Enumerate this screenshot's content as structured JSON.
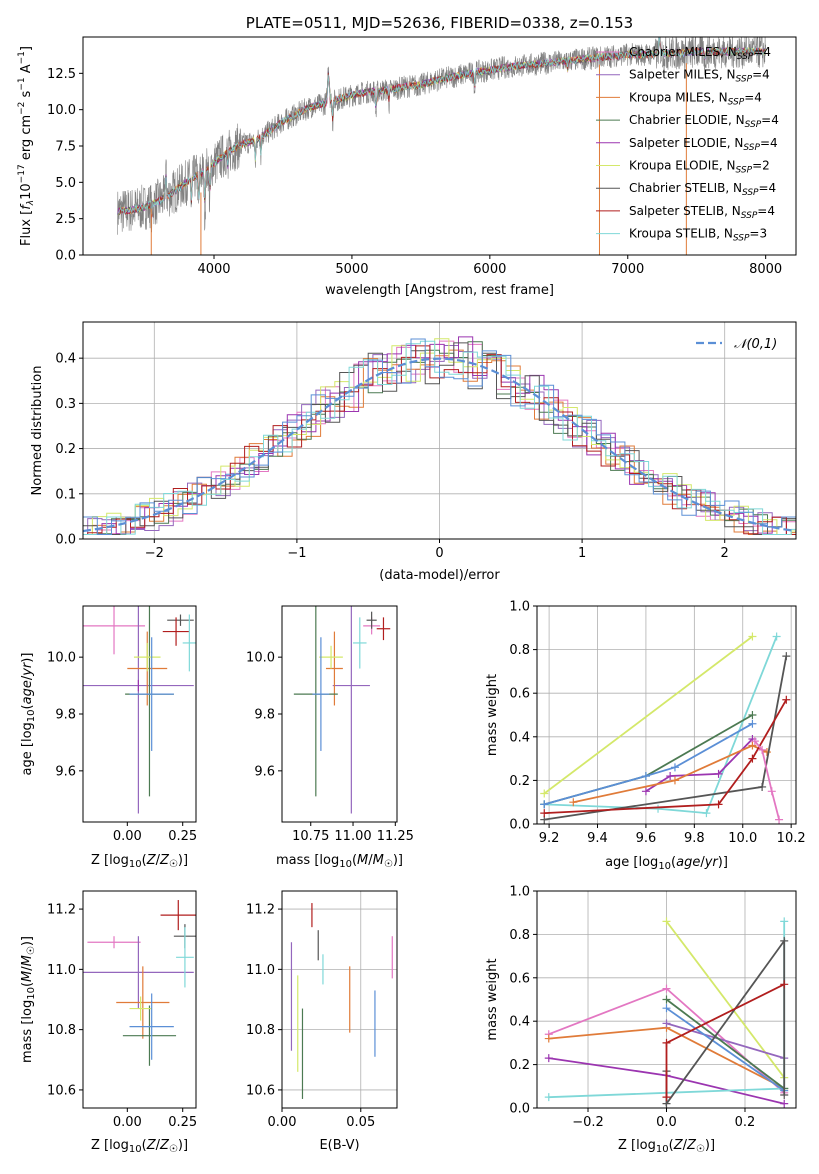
{
  "colors": {
    "Chabrier MILES": "#e377c2",
    "Salpeter MILES": "#9467bd",
    "Kroupa MILES": "#e07b39",
    "Chabrier ELODIE": "#4c7a52",
    "Salpeter ELODIE": "#9b35b0",
    "Kroupa ELODIE": "#d4e86a",
    "Chabrier STELIB": "#555555",
    "Salpeter STELIB": "#b11e1e",
    "Kroupa STELIB": "#7fd8d8",
    "data": "#808080",
    "normal": "#5b8fd6",
    "blue": "#5b8fd6",
    "grid": "#b0b0b0"
  },
  "chart_data": [
    {
      "id": "spectrum",
      "type": "line",
      "title": "PLATE=0511, MJD=52636, FIBERID=0338, z=0.153",
      "xlabel": "wavelength [Angstrom, rest frame]",
      "ylabel": "Flux [f_λ 10^-17 erg cm^-2 s^-1 A^-1]",
      "xlim": [
        3050,
        8220
      ],
      "ylim": [
        0,
        15
      ],
      "xticks": [
        "4000",
        "5000",
        "6000",
        "7000",
        "8000"
      ],
      "yticks": [
        "0.0",
        "2.5",
        "5.0",
        "7.5",
        "10.0",
        "12.5"
      ],
      "grid": false,
      "legend_position": "top-right",
      "legend": [
        {
          "base": "Chabrier MILES, N",
          "sub": "SSP",
          "tail": "=4",
          "color_key": "Chabrier MILES"
        },
        {
          "base": "Salpeter MILES, N",
          "sub": "SSP",
          "tail": "=4",
          "color_key": "Salpeter MILES"
        },
        {
          "base": "Kroupa MILES, N",
          "sub": "SSP",
          "tail": "=4",
          "color_key": "Kroupa MILES"
        },
        {
          "base": "Chabrier ELODIE, N",
          "sub": "SSP",
          "tail": "=4",
          "color_key": "Chabrier ELODIE"
        },
        {
          "base": "Salpeter ELODIE, N",
          "sub": "SSP",
          "tail": "=4",
          "color_key": "Salpeter ELODIE"
        },
        {
          "base": "Kroupa ELODIE, N",
          "sub": "SSP",
          "tail": "=2",
          "color_key": "Kroupa ELODIE"
        },
        {
          "base": "Chabrier STELIB, N",
          "sub": "SSP",
          "tail": "=4",
          "color_key": "Chabrier STELIB"
        },
        {
          "base": "Salpeter STELIB, N",
          "sub": "SSP",
          "tail": "=4",
          "color_key": "Salpeter STELIB"
        },
        {
          "base": "Kroupa STELIB, N",
          "sub": "SSP",
          "tail": "=3",
          "color_key": "Kroupa STELIB"
        }
      ],
      "continuum": [
        [
          3300,
          3.0
        ],
        [
          3400,
          3.1
        ],
        [
          3500,
          3.3
        ],
        [
          3600,
          3.7
        ],
        [
          3700,
          4.3
        ],
        [
          3800,
          5.0
        ],
        [
          3900,
          5.6
        ],
        [
          4000,
          6.3
        ],
        [
          4100,
          7.1
        ],
        [
          4200,
          7.6
        ],
        [
          4300,
          7.9
        ],
        [
          4400,
          8.5
        ],
        [
          4500,
          9.2
        ],
        [
          4600,
          9.7
        ],
        [
          4700,
          10.2
        ],
        [
          4800,
          10.4
        ],
        [
          4900,
          10.7
        ],
        [
          5000,
          11.0
        ],
        [
          5100,
          11.2
        ],
        [
          5200,
          11.3
        ],
        [
          5300,
          11.4
        ],
        [
          5400,
          11.6
        ],
        [
          5500,
          11.7
        ],
        [
          5600,
          12.0
        ],
        [
          5700,
          12.2
        ],
        [
          5800,
          12.4
        ],
        [
          5900,
          12.6
        ],
        [
          6000,
          12.7
        ],
        [
          6100,
          12.9
        ],
        [
          6200,
          13.0
        ],
        [
          6300,
          13.1
        ],
        [
          6400,
          13.2
        ],
        [
          6500,
          13.3
        ],
        [
          6600,
          13.4
        ],
        [
          6700,
          13.5
        ],
        [
          6800,
          13.6
        ],
        [
          6900,
          13.7
        ],
        [
          7000,
          13.8
        ],
        [
          7100,
          13.8
        ],
        [
          7200,
          13.8
        ],
        [
          7300,
          13.9
        ],
        [
          7400,
          13.9
        ],
        [
          7500,
          14.0
        ],
        [
          7600,
          14.0
        ],
        [
          7700,
          14.0
        ],
        [
          7800,
          14.0
        ],
        [
          7900,
          14.0
        ],
        [
          8000,
          14.0
        ]
      ],
      "features": [
        [
          3550,
          1.6,
          -1.2
        ],
        [
          3650,
          2.0,
          2.0
        ],
        [
          3835,
          1.8,
          -2.0
        ],
        [
          3889,
          2.2,
          -2.5
        ],
        [
          3934,
          2.6,
          -2.8
        ],
        [
          3969,
          2.4,
          -2.5
        ],
        [
          4102,
          1.6,
          -1.5
        ],
        [
          4300,
          2.2,
          -1.6
        ],
        [
          4340,
          1.6,
          -1.3
        ],
        [
          4861,
          1.8,
          -1.5
        ],
        [
          4830,
          3.5,
          2.6
        ],
        [
          5175,
          2.2,
          -1.6
        ],
        [
          5270,
          1.5,
          -1.0
        ],
        [
          5890,
          2.0,
          -1.3
        ],
        [
          6563,
          1.5,
          -0.8
        ],
        [
          7230,
          2.8,
          1.4
        ],
        [
          7560,
          1.8,
          -0.9
        ]
      ]
    },
    {
      "id": "residual-histogram",
      "type": "bar",
      "xlabel": "(data-model)/error",
      "ylabel": "Normed distribution",
      "xlim": [
        -2.5,
        2.5
      ],
      "ylim": [
        0,
        0.48
      ],
      "xticks": [
        "−2",
        "−1",
        "0",
        "1",
        "2"
      ],
      "yticks": [
        "0.0",
        "0.1",
        "0.2",
        "0.3",
        "0.4"
      ],
      "grid": true,
      "bin_width": 0.1,
      "legend_position": "top-right",
      "normal_label": "𝒩(0,1)",
      "normal_mean": 0,
      "normal_sigma": 1
    },
    {
      "id": "age-vs-z",
      "type": "scatter",
      "xlabel": "Z [log10(Z/Z☉)]",
      "ylabel": "age [log10(age/yr)]",
      "xlim": [
        -0.2,
        0.31
      ],
      "ylim": [
        9.42,
        10.18
      ],
      "xticks": [
        "0.00",
        "0.25"
      ],
      "ytick_values": [
        9.6,
        9.8,
        10.0
      ],
      "yticks": [
        "9.6",
        "9.8",
        "10.0"
      ],
      "grid": false,
      "points": [
        {
          "model": "Chabrier MILES",
          "x": -0.06,
          "y": 10.11,
          "xerr": 0.14,
          "yerr": 0.1
        },
        {
          "model": "Salpeter MILES",
          "x": 0.05,
          "y": 9.9,
          "xerr": 0.25,
          "yerr": 0.45
        },
        {
          "model": "Kroupa MILES",
          "x": 0.09,
          "y": 9.96,
          "xerr": 0.09,
          "yerr": 0.13
        },
        {
          "model": "Chabrier ELODIE",
          "x": 0.1,
          "y": 9.87,
          "xerr": 0.11,
          "yerr": 0.36
        },
        {
          "model": "Salpeter ELODIE",
          "x": 0.05,
          "y": 9.9,
          "xerr": 0.0,
          "yerr": 0.0
        },
        {
          "model": "Kroupa ELODIE",
          "x": 0.09,
          "y": 10.0,
          "xerr": 0.06,
          "yerr": 0.05
        },
        {
          "model": "Chabrier STELIB",
          "x": 0.24,
          "y": 10.13,
          "xerr": 0.06,
          "yerr": 0.0
        },
        {
          "model": "Salpeter STELIB",
          "x": 0.22,
          "y": 10.09,
          "xerr": 0.06,
          "yerr": 0.05
        },
        {
          "model": "Kroupa STELIB",
          "x": 0.28,
          "y": 10.05,
          "xerr": 0.03,
          "yerr": 0.1
        },
        {
          "model": "blue",
          "x": 0.11,
          "y": 9.87,
          "xerr": 0.1,
          "yerr": 0.2
        }
      ]
    },
    {
      "id": "age-vs-mass",
      "type": "scatter",
      "xlabel": "mass [log10(M/M☉)]",
      "ylabel": "",
      "xlim": [
        10.58,
        11.26
      ],
      "ylim": [
        9.42,
        10.18
      ],
      "xticks": [
        "10.75",
        "11.00",
        "11.25"
      ],
      "xtick_values": [
        10.75,
        11.0,
        11.25
      ],
      "ytick_values": [
        9.6,
        9.8,
        10.0
      ],
      "yticks": [
        "9.6",
        "9.8",
        "10.0"
      ],
      "grid": false,
      "points": [
        {
          "model": "Chabrier MILES",
          "x": 11.11,
          "y": 10.11,
          "xerr": 0.05,
          "yerr": 0.03
        },
        {
          "model": "Salpeter MILES",
          "x": 10.99,
          "y": 9.9,
          "xerr": 0.11,
          "yerr": 0.45
        },
        {
          "model": "Kroupa MILES",
          "x": 10.89,
          "y": 9.96,
          "xerr": 0.05,
          "yerr": 0.13
        },
        {
          "model": "Chabrier ELODIE",
          "x": 10.78,
          "y": 9.87,
          "xerr": 0.13,
          "yerr": 0.36
        },
        {
          "model": "Kroupa ELODIE",
          "x": 10.87,
          "y": 10.0,
          "xerr": 0.07,
          "yerr": 0.04
        },
        {
          "model": "Chabrier STELIB",
          "x": 11.11,
          "y": 10.13,
          "xerr": 0.03,
          "yerr": 0.03
        },
        {
          "model": "Salpeter STELIB",
          "x": 11.18,
          "y": 10.1,
          "xerr": 0.04,
          "yerr": 0.04
        },
        {
          "model": "Kroupa STELIB",
          "x": 11.04,
          "y": 10.05,
          "xerr": 0.04,
          "yerr": 0.09
        },
        {
          "model": "blue",
          "x": 10.81,
          "y": 9.87,
          "xerr": 0.05,
          "yerr": 0.2
        }
      ]
    },
    {
      "id": "mass-weight-vs-age",
      "type": "line",
      "xlabel": "age [log10(age/yr)]",
      "ylabel": "mass weight",
      "xlim": [
        9.15,
        10.22
      ],
      "ylim": [
        0,
        1
      ],
      "xticks": [
        "9.2",
        "9.4",
        "9.6",
        "9.8",
        "10.0",
        "10.2"
      ],
      "xtick_values": [
        9.2,
        9.4,
        9.6,
        9.8,
        10.0,
        10.2
      ],
      "yticks": [
        "0.0",
        "0.2",
        "0.4",
        "0.6",
        "0.8",
        "1.0"
      ],
      "ytick_values": [
        0,
        0.2,
        0.4,
        0.6,
        0.8,
        1.0
      ],
      "grid": true,
      "series": [
        {
          "model": "Kroupa ELODIE",
          "x": [
            9.18,
            10.04
          ],
          "y": [
            0.14,
            0.86
          ]
        },
        {
          "model": "Kroupa STELIB",
          "x": [
            9.18,
            9.65,
            9.85,
            10.14
          ],
          "y": [
            0.09,
            0.07,
            0.05,
            0.86
          ]
        },
        {
          "model": "Chabrier ELODIE",
          "x": [
            9.18,
            9.6,
            10.04
          ],
          "y": [
            0.09,
            0.22,
            0.5
          ]
        },
        {
          "model": "blue",
          "x": [
            9.18,
            9.6,
            9.72,
            10.04
          ],
          "y": [
            0.09,
            0.22,
            0.26,
            0.46
          ]
        },
        {
          "model": "Salpeter ELODIE",
          "x": [
            9.6,
            9.7,
            9.9,
            10.04
          ],
          "y": [
            0.15,
            0.22,
            0.23,
            0.39
          ]
        },
        {
          "model": "Kroupa MILES",
          "x": [
            9.3,
            9.72,
            10.04,
            10.1
          ],
          "y": [
            0.1,
            0.2,
            0.36,
            0.33
          ]
        },
        {
          "model": "Chabrier STELIB",
          "x": [
            9.18,
            10.08,
            10.18
          ],
          "y": [
            0.02,
            0.17,
            0.77
          ]
        },
        {
          "model": "Salpeter STELIB",
          "x": [
            9.18,
            9.9,
            10.04,
            10.18
          ],
          "y": [
            0.05,
            0.09,
            0.3,
            0.57
          ]
        },
        {
          "model": "Chabrier MILES",
          "x": [
            10.05,
            10.08,
            10.12,
            10.15
          ],
          "y": [
            0.38,
            0.34,
            0.15,
            0.02
          ]
        }
      ]
    },
    {
      "id": "mass-vs-z",
      "type": "scatter",
      "xlabel": "Z [log10(Z/Z☉)]",
      "ylabel": "mass [log10(M/M☉)]",
      "xlim": [
        -0.2,
        0.31
      ],
      "ylim": [
        10.54,
        11.26
      ],
      "xticks": [
        "0.00",
        "0.25"
      ],
      "ytick_values": [
        10.6,
        10.8,
        11.0,
        11.2
      ],
      "yticks": [
        "10.6",
        "10.8",
        "11.0",
        "11.2"
      ],
      "grid": false,
      "points": [
        {
          "model": "Chabrier MILES",
          "x": -0.06,
          "y": 11.09,
          "xerr": 0.12,
          "yerr": 0.02
        },
        {
          "model": "Salpeter MILES",
          "x": 0.05,
          "y": 10.99,
          "xerr": 0.25,
          "yerr": 0.12
        },
        {
          "model": "Kroupa MILES",
          "x": 0.07,
          "y": 10.89,
          "xerr": 0.12,
          "yerr": 0.12
        },
        {
          "model": "Chabrier ELODIE",
          "x": 0.1,
          "y": 10.78,
          "xerr": 0.12,
          "yerr": 0.1
        },
        {
          "model": "Kroupa ELODIE",
          "x": 0.06,
          "y": 10.87,
          "xerr": 0.05,
          "yerr": 0.04
        },
        {
          "model": "Chabrier STELIB",
          "x": 0.26,
          "y": 11.11,
          "xerr": 0.05,
          "yerr": 0.04
        },
        {
          "model": "Salpeter STELIB",
          "x": 0.23,
          "y": 11.18,
          "xerr": 0.08,
          "yerr": 0.05
        },
        {
          "model": "Kroupa STELIB",
          "x": 0.26,
          "y": 11.04,
          "xerr": 0.04,
          "yerr": 0.1
        },
        {
          "model": "blue",
          "x": 0.11,
          "y": 10.81,
          "xerr": 0.1,
          "yerr": 0.11
        }
      ]
    },
    {
      "id": "mass-vs-ebv",
      "type": "scatter",
      "xlabel": "E(B-V)",
      "ylabel": "",
      "xlim": [
        0,
        0.073
      ],
      "ylim": [
        10.54,
        11.26
      ],
      "xticks": [
        "0.00",
        "0.05"
      ],
      "xtick_values": [
        0,
        0.05
      ],
      "ytick_values": [
        10.6,
        10.8,
        11.0,
        11.2
      ],
      "yticks": [
        "10.6",
        "10.8",
        "11.0",
        "11.2"
      ],
      "grid": true,
      "points": [
        {
          "model": "Salpeter MILES",
          "x": 0.006,
          "y": 10.91,
          "xerr": 0,
          "yerr": 0.18
        },
        {
          "model": "Kroupa ELODIE",
          "x": 0.01,
          "y": 10.82,
          "xerr": 0,
          "yerr": 0.16
        },
        {
          "model": "Chabrier ELODIE",
          "x": 0.013,
          "y": 10.72,
          "xerr": 0,
          "yerr": 0.15
        },
        {
          "model": "Salpeter STELIB",
          "x": 0.019,
          "y": 11.18,
          "xerr": 0,
          "yerr": 0.04
        },
        {
          "model": "Chabrier STELIB",
          "x": 0.023,
          "y": 11.08,
          "xerr": 0,
          "yerr": 0.05
        },
        {
          "model": "Kroupa STELIB",
          "x": 0.026,
          "y": 11.0,
          "xerr": 0,
          "yerr": 0.05
        },
        {
          "model": "Kroupa MILES",
          "x": 0.043,
          "y": 10.9,
          "xerr": 0,
          "yerr": 0.11
        },
        {
          "model": "blue",
          "x": 0.059,
          "y": 10.82,
          "xerr": 0,
          "yerr": 0.11
        },
        {
          "model": "Chabrier MILES",
          "x": 0.07,
          "y": 11.04,
          "xerr": 0,
          "yerr": 0.07
        }
      ]
    },
    {
      "id": "mass-weight-vs-z",
      "type": "line",
      "xlabel": "Z [log10(Z/Z☉)]",
      "ylabel": "mass weight",
      "xlim": [
        -0.33,
        0.33
      ],
      "ylim": [
        0,
        1
      ],
      "xticks": [
        "−0.2",
        "0.0",
        "0.2"
      ],
      "xtick_values": [
        -0.2,
        0,
        0.2
      ],
      "yticks": [
        "0.0",
        "0.2",
        "0.4",
        "0.6",
        "0.8",
        "1.0"
      ],
      "ytick_values": [
        0,
        0.2,
        0.4,
        0.6,
        0.8,
        1.0
      ],
      "grid": true,
      "series": [
        {
          "model": "Kroupa ELODIE",
          "x": [
            0,
            0.3
          ],
          "y": [
            0.86,
            0.14
          ]
        },
        {
          "model": "Chabrier MILES",
          "x": [
            -0.3,
            0,
            0.3
          ],
          "y": [
            0.34,
            0.55,
            0.07
          ]
        },
        {
          "model": "Kroupa MILES",
          "x": [
            -0.3,
            0,
            0.3
          ],
          "y": [
            0.32,
            0.37,
            0.09
          ]
        },
        {
          "model": "Salpeter ELODIE",
          "x": [
            -0.3,
            0,
            0.3
          ],
          "y": [
            0.23,
            0.15,
            0.02
          ]
        },
        {
          "model": "Salpeter MILES",
          "x": [
            0,
            0.3
          ],
          "y": [
            0.39,
            0.23
          ]
        },
        {
          "model": "Kroupa STELIB",
          "x": [
            -0.3,
            0,
            0.3,
            0.3
          ],
          "y": [
            0.05,
            0.07,
            0.09,
            0.86
          ]
        },
        {
          "model": "Chabrier ELODIE",
          "x": [
            0,
            0.3
          ],
          "y": [
            0.5,
            0.09
          ]
        },
        {
          "model": "blue",
          "x": [
            0,
            0.3
          ],
          "y": [
            0.46,
            0.08
          ]
        },
        {
          "model": "Chabrier STELIB",
          "x": [
            0,
            0,
            0.3,
            0.3
          ],
          "y": [
            0.17,
            0.02,
            0.77,
            0.06
          ]
        },
        {
          "model": "Salpeter STELIB",
          "x": [
            0,
            0,
            0.3
          ],
          "y": [
            0.05,
            0.3,
            0.57
          ]
        }
      ]
    }
  ]
}
